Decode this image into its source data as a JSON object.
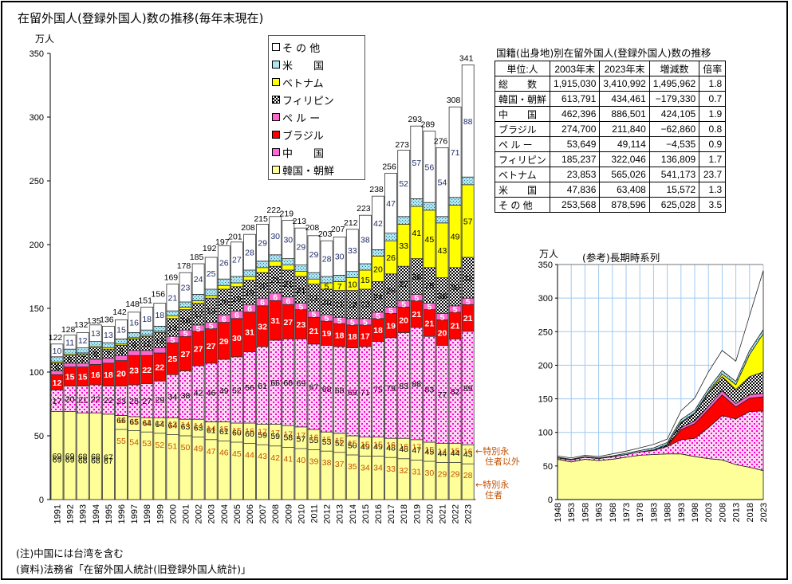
{
  "title": "在留外国人(登録外国人)数の推移(毎年末現在)",
  "main_unit": "万人",
  "chart_data": [
    {
      "type": "bar",
      "stacked": true,
      "title": "在留外国人(登録外国人)数の推移(毎年末現在)",
      "ylabel": "万人",
      "ylim": [
        0,
        350
      ],
      "yticks": [
        0,
        50,
        100,
        150,
        200,
        250,
        300,
        350
      ],
      "categories": [
        "1991",
        "1992",
        "1993",
        "1994",
        "1995",
        "1996",
        "1997",
        "1998",
        "1999",
        "2000",
        "2001",
        "2002",
        "2003",
        "2004",
        "2005",
        "2006",
        "2007",
        "2008",
        "2009",
        "2010",
        "2011",
        "2012",
        "2013",
        "2014",
        "2015",
        "2016",
        "2017",
        "2018",
        "2019",
        "2020",
        "2021",
        "2022",
        "2023"
      ],
      "totals": [
        122,
        128,
        132,
        135,
        136,
        142,
        148,
        151,
        156,
        169,
        178,
        185,
        192,
        197,
        201,
        208,
        215,
        222,
        219,
        213,
        208,
        203,
        207,
        212,
        223,
        238,
        256,
        273,
        293,
        289,
        276,
        308,
        341
      ],
      "series": [
        {
          "name": "韓国・朝鮮",
          "color": "#ffff99",
          "values": [
            69,
            69,
            68,
            68,
            67,
            66,
            65,
            64,
            64,
            64,
            63,
            63,
            61,
            61,
            60,
            60,
            59,
            59,
            58,
            57,
            55,
            53,
            52,
            50,
            49,
            49,
            48,
            48,
            47,
            45,
            44,
            44,
            43
          ]
        },
        {
          "name": "中　　国",
          "color": "#ff33cc",
          "values": [
            17,
            20,
            21,
            22,
            22,
            23,
            25,
            27,
            29,
            34,
            38,
            42,
            46,
            49,
            52,
            56,
            61,
            66,
            68,
            69,
            67,
            68,
            68,
            69,
            71,
            75,
            79,
            83,
            88,
            83,
            77,
            82,
            89
          ]
        },
        {
          "name": "ブラジル",
          "color": "#ff0000",
          "values": [
            12,
            15,
            15,
            16,
            18,
            20,
            23,
            22,
            22,
            25,
            27,
            27,
            27,
            29,
            30,
            31,
            32,
            31,
            27,
            23,
            21,
            19,
            18,
            18,
            17,
            18,
            19,
            20,
            21,
            21,
            20,
            21,
            21
          ]
        },
        {
          "name": "ペ ル ー",
          "color": "#ff66cc",
          "values": [
            3,
            3,
            3,
            4,
            4,
            4,
            4,
            4,
            4,
            5,
            5,
            5,
            5,
            6,
            6,
            6,
            6,
            6,
            6,
            5,
            5,
            5,
            5,
            5,
            5,
            5,
            5,
            5,
            5,
            5,
            5,
            5,
            5
          ]
        },
        {
          "name": "フィリピン",
          "color": "#333333",
          "values": [
            6,
            6,
            7,
            9,
            7,
            8,
            9,
            11,
            12,
            14,
            16,
            17,
            19,
            20,
            19,
            19,
            20,
            21,
            21,
            21,
            21,
            20,
            21,
            22,
            23,
            24,
            26,
            27,
            28,
            28,
            28,
            30,
            32
          ]
        },
        {
          "name": "ベトナム",
          "color": "#ffff00",
          "values": [
            1,
            1,
            1,
            1,
            1,
            1,
            1,
            1,
            1,
            2,
            2,
            2,
            2,
            3,
            3,
            3,
            4,
            4,
            4,
            4,
            4,
            5,
            7,
            10,
            15,
            20,
            26,
            33,
            41,
            45,
            43,
            49,
            57
          ]
        },
        {
          "name": "米　　国",
          "color": "#99ddee",
          "values": [
            4,
            4,
            4,
            4,
            4,
            4,
            4,
            4,
            4,
            4,
            4,
            5,
            5,
            5,
            5,
            5,
            5,
            5,
            5,
            5,
            5,
            5,
            5,
            5,
            5,
            5,
            6,
            6,
            6,
            6,
            5,
            6,
            6
          ]
        },
        {
          "name": "そ の 他",
          "color": "#ffffff",
          "values": [
            10,
            11,
            12,
            13,
            13,
            15,
            16,
            18,
            18,
            21,
            23,
            24,
            25,
            26,
            27,
            28,
            29,
            30,
            30,
            29,
            29,
            28,
            30,
            33,
            38,
            42,
            47,
            52,
            57,
            56,
            54,
            71,
            88
          ]
        }
      ],
      "korea_split": {
        "special_permanent": [
          null,
          null,
          null,
          null,
          null,
          55,
          54,
          53,
          52,
          51,
          50,
          49,
          47,
          46,
          45,
          44,
          43,
          42,
          41,
          40,
          39,
          38,
          37,
          35,
          34,
          34,
          33,
          32,
          31,
          30,
          29,
          29,
          28
        ],
        "other": [
          null,
          null,
          null,
          null,
          null,
          11,
          11,
          11,
          12,
          13,
          14,
          14,
          14,
          15,
          15,
          16,
          17,
          17,
          17,
          17,
          16,
          15,
          15,
          15,
          15,
          15,
          16,
          16,
          17,
          15,
          14,
          15,
          16
        ]
      },
      "legend_placement": "top-center",
      "annotations": [
        "←特別永\n住者以外",
        "←特別永\n住者"
      ]
    },
    {
      "type": "area",
      "stacked": true,
      "title": "(参考)長期時系列",
      "ylabel": "万人",
      "ylim": [
        0,
        350
      ],
      "yticks": [
        0,
        50,
        100,
        150,
        200,
        250,
        300,
        350
      ],
      "x_ticks": [
        "1948",
        "1953",
        "1958",
        "1963",
        "1968",
        "1973",
        "1978",
        "1983",
        "1988",
        "1993",
        "1998",
        "2003",
        "2008",
        "2013",
        "2018",
        "2023"
      ],
      "x": [
        1948,
        1953,
        1958,
        1963,
        1968,
        1973,
        1978,
        1983,
        1988,
        1993,
        1998,
        2003,
        2008,
        2013,
        2018,
        2023
      ],
      "series": [
        {
          "name": "韓国・朝鮮",
          "values": [
            60,
            56,
            60,
            58,
            60,
            63,
            66,
            67,
            68,
            68,
            64,
            61,
            59,
            52,
            48,
            43
          ]
        },
        {
          "name": "中　　国",
          "values": [
            2,
            3,
            3,
            3,
            4,
            4,
            5,
            6,
            11,
            21,
            27,
            46,
            66,
            68,
            83,
            89
          ]
        },
        {
          "name": "ブラジル",
          "values": [
            0,
            0,
            0,
            0,
            0,
            0,
            0,
            0,
            1,
            15,
            22,
            27,
            31,
            18,
            20,
            21
          ]
        },
        {
          "name": "ペ ル ー",
          "values": [
            0,
            0,
            0,
            0,
            0,
            0,
            0,
            0,
            0,
            3,
            4,
            5,
            6,
            5,
            5,
            5
          ]
        },
        {
          "name": "フィリピン",
          "values": [
            0,
            0,
            0,
            0,
            0,
            0,
            0,
            1,
            2,
            7,
            11,
            19,
            21,
            21,
            27,
            32
          ]
        },
        {
          "name": "ベトナム",
          "values": [
            0,
            0,
            0,
            0,
            0,
            0,
            0,
            0,
            0,
            1,
            1,
            2,
            4,
            7,
            33,
            57
          ]
        },
        {
          "name": "米　　国",
          "values": [
            1,
            1,
            1,
            1,
            1,
            2,
            2,
            3,
            3,
            4,
            4,
            5,
            5,
            5,
            6,
            6
          ]
        },
        {
          "name": "そ の 他",
          "values": [
            2,
            2,
            2,
            2,
            3,
            3,
            4,
            5,
            5,
            13,
            18,
            25,
            30,
            30,
            52,
            88
          ]
        }
      ]
    }
  ],
  "legend": [
    {
      "label": "そ の 他",
      "color": "#ffffff"
    },
    {
      "label": "米　　国",
      "color": "#99ddee"
    },
    {
      "label": "ベトナム",
      "color": "#ffff00"
    },
    {
      "label": "フィリピン",
      "color": "#333333"
    },
    {
      "label": "ペ ル ー",
      "color": "#ff66cc"
    },
    {
      "label": "ブラジル",
      "color": "#ff0000"
    },
    {
      "label": "中　　国",
      "color": "#ff33cc"
    },
    {
      "label": "韓国・朝鮮",
      "color": "#ffff99"
    }
  ],
  "table": {
    "title": "国籍(出身地)別在留外国人(登録外国人)数の推移",
    "headers": [
      "単位:人",
      "2003年末",
      "2023年末",
      "増減数",
      "倍率"
    ],
    "rows": [
      [
        "総　　数",
        "1,915,030",
        "3,410,992",
        "1,495,962",
        "1.8"
      ],
      [
        "韓国・朝鮮",
        "613,791",
        "434,461",
        "−179,330",
        "0.7"
      ],
      [
        "中　　国",
        "462,396",
        "886,501",
        "424,105",
        "1.9"
      ],
      [
        "ブラジル",
        "274,700",
        "211,840",
        "−62,860",
        "0.8"
      ],
      [
        "ペ ル ー",
        "53,649",
        "49,114",
        "−4,535",
        "0.9"
      ],
      [
        "フィリピン",
        "185,237",
        "322,046",
        "136,809",
        "1.7"
      ],
      [
        "ベトナム",
        "23,853",
        "565,026",
        "541,173",
        "23.7"
      ],
      [
        "米　　国",
        "47,836",
        "63,408",
        "15,572",
        "1.3"
      ],
      [
        "そ の 他",
        "253,568",
        "878,596",
        "625,028",
        "3.5"
      ]
    ]
  },
  "long_term": {
    "title": "(参考)長期時系列",
    "unit": "万人"
  },
  "annotations": {
    "non_special": [
      "←特別永",
      "住者以外"
    ],
    "special": [
      "←特別永",
      "住者"
    ]
  },
  "notes": [
    "(注)中国には台湾を含む",
    "(資料)法務省「在留外国人統計(旧登録外国人統計)」"
  ]
}
